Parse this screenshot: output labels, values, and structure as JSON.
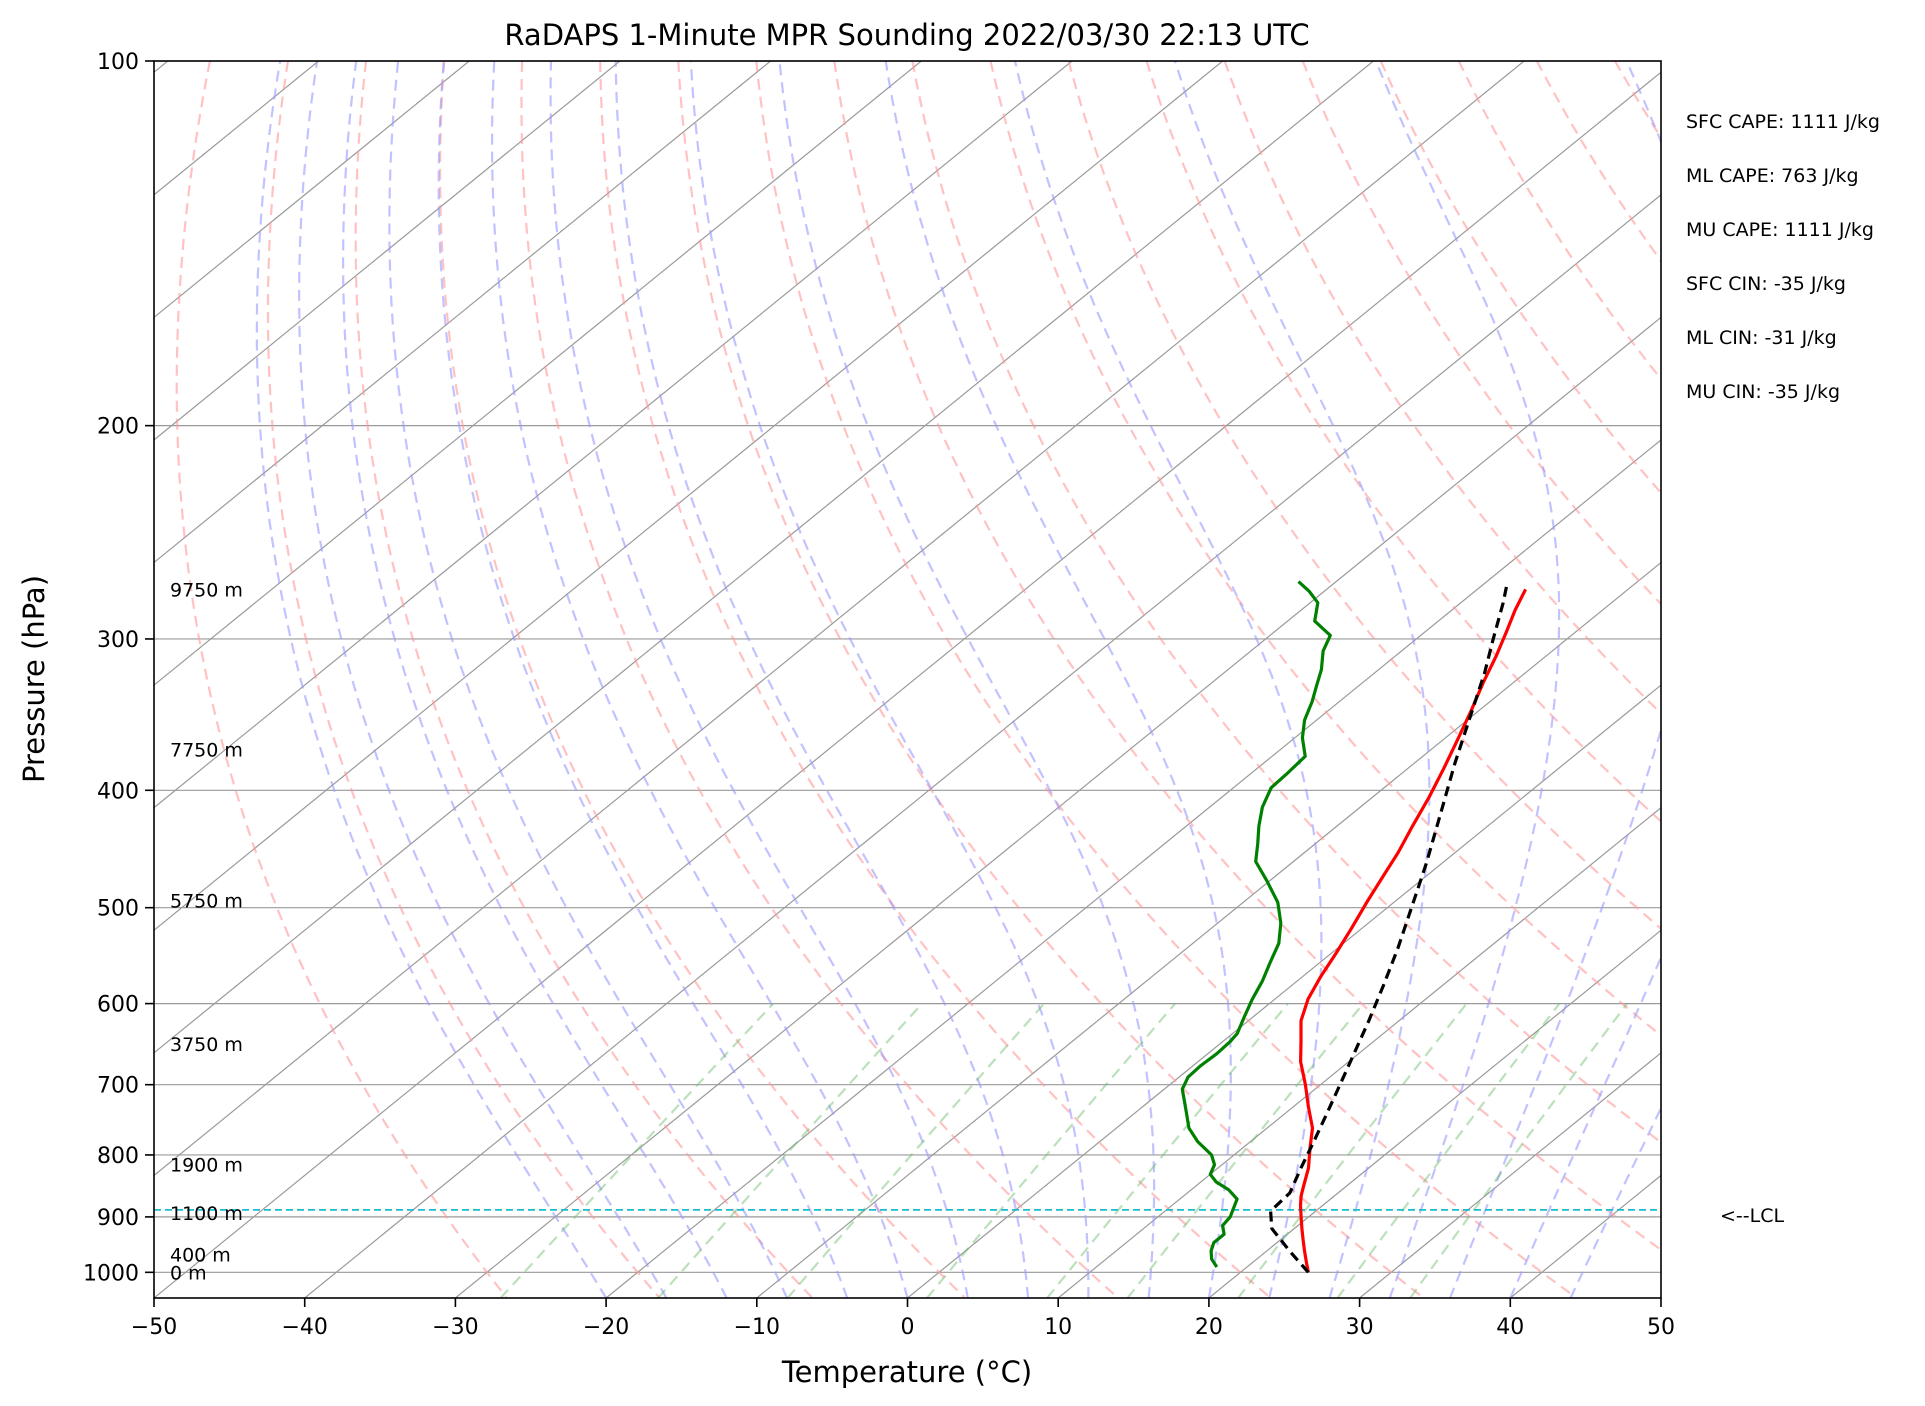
{
  "chart_data": {
    "type": "line",
    "title": "RaDAPS 1-Minute MPR Sounding 2022/03/30 22:13 UTC",
    "xlabel": "Temperature (°C)",
    "ylabel": "Pressure (hPa)",
    "xlim": [
      -50,
      50
    ],
    "ylim": [
      1050,
      100
    ],
    "y_scale": "log",
    "skew": true,
    "x_ticks": [
      "−50",
      "−40",
      "−30",
      "−20",
      "−10",
      "0",
      "10",
      "20",
      "30",
      "40",
      "50"
    ],
    "y_ticks": [
      "100",
      "200",
      "300",
      "400",
      "500",
      "600",
      "700",
      "800",
      "900",
      "1000"
    ],
    "height_labels": [
      {
        "text": "9750 m",
        "pressure": 273
      },
      {
        "text": "7750 m",
        "pressure": 370
      },
      {
        "text": "5750 m",
        "pressure": 493
      },
      {
        "text": "3750 m",
        "pressure": 648
      },
      {
        "text": "1900 m",
        "pressure": 815
      },
      {
        "text": "1100 m",
        "pressure": 893
      },
      {
        "text": "400 m",
        "pressure": 967
      },
      {
        "text": "0 m",
        "pressure": 1000
      }
    ],
    "parameters": [
      "SFC CAPE: 1111 J/kg",
      "ML CAPE: 763 J/kg",
      "MU CAPE: 1111 J/kg",
      "SFC CIN: -35 J/kg",
      "ML CIN: -31 J/kg",
      "MU CIN: -35 J/kg"
    ],
    "lcl": {
      "pressure": 888,
      "label": "<--LCL"
    },
    "series": [
      {
        "key": "temperature",
        "color": "#ff0000",
        "points": [
          [
            24.5,
            1000
          ],
          [
            23.5,
            980
          ],
          [
            22.5,
            960
          ],
          [
            21.5,
            940
          ],
          [
            20.5,
            920
          ],
          [
            19.5,
            900
          ],
          [
            18.5,
            880
          ],
          [
            17.8,
            865
          ],
          [
            17.2,
            850
          ],
          [
            16.0,
            820
          ],
          [
            14.5,
            790
          ],
          [
            13.0,
            760
          ],
          [
            11.0,
            730
          ],
          [
            9.0,
            700
          ],
          [
            6.8,
            670
          ],
          [
            5.2,
            645
          ],
          [
            3.5,
            620
          ],
          [
            2.2,
            595
          ],
          [
            1.2,
            570
          ],
          [
            0.3,
            545
          ],
          [
            -0.7,
            520
          ],
          [
            -1.8,
            495
          ],
          [
            -2.8,
            472
          ],
          [
            -3.8,
            450
          ],
          [
            -5.0,
            428
          ],
          [
            -6.2,
            406
          ],
          [
            -7.6,
            384
          ],
          [
            -9.0,
            364
          ],
          [
            -10.5,
            344
          ],
          [
            -12.0,
            326
          ],
          [
            -13.3,
            310
          ],
          [
            -14.6,
            296
          ],
          [
            -15.8,
            284
          ],
          [
            -16.8,
            273
          ]
        ]
      },
      {
        "key": "dewpoint",
        "color": "#008000",
        "points": [
          [
            18.0,
            990
          ],
          [
            17.0,
            975
          ],
          [
            16.3,
            960
          ],
          [
            15.8,
            945
          ],
          [
            15.8,
            930
          ],
          [
            15.0,
            915
          ],
          [
            14.8,
            900
          ],
          [
            14.3,
            885
          ],
          [
            13.8,
            870
          ],
          [
            12.5,
            855
          ],
          [
            11.0,
            842
          ],
          [
            10.0,
            830
          ],
          [
            9.5,
            815
          ],
          [
            8.5,
            800
          ],
          [
            6.5,
            780
          ],
          [
            4.8,
            760
          ],
          [
            3.5,
            740
          ],
          [
            2.3,
            722
          ],
          [
            1.2,
            706
          ],
          [
            0.6,
            690
          ],
          [
            0.5,
            675
          ],
          [
            0.6,
            660
          ],
          [
            0.5,
            645
          ],
          [
            0.3,
            635
          ],
          [
            -0.6,
            615
          ],
          [
            -1.5,
            595
          ],
          [
            -2.3,
            575
          ],
          [
            -3.3,
            555
          ],
          [
            -4.3,
            535
          ],
          [
            -5.8,
            515
          ],
          [
            -7.7,
            495
          ],
          [
            -10.2,
            475
          ],
          [
            -12.5,
            458
          ],
          [
            -13.8,
            443
          ],
          [
            -15.2,
            428
          ],
          [
            -16.5,
            413
          ],
          [
            -17.5,
            398
          ],
          [
            -17.6,
            387
          ],
          [
            -17.8,
            375
          ],
          [
            -19.5,
            362
          ],
          [
            -20.8,
            350
          ],
          [
            -21.8,
            338
          ],
          [
            -22.8,
            328
          ],
          [
            -23.8,
            318
          ],
          [
            -25.2,
            307
          ],
          [
            -26.0,
            298
          ],
          [
            -28.2,
            290
          ],
          [
            -29.5,
            280
          ],
          [
            -31.0,
            274
          ],
          [
            -32.5,
            269
          ]
        ]
      },
      {
        "key": "parcel",
        "color": "#000000",
        "dashed": true,
        "points": [
          [
            24.5,
            1000
          ],
          [
            21.5,
            960
          ],
          [
            18.5,
            920
          ],
          [
            17.0,
            890
          ],
          [
            16.8,
            860
          ],
          [
            15.5,
            820
          ],
          [
            14.2,
            780
          ],
          [
            12.8,
            740
          ],
          [
            11.3,
            700
          ],
          [
            9.7,
            660
          ],
          [
            8.0,
            620
          ],
          [
            6.1,
            580
          ],
          [
            4.0,
            540
          ],
          [
            1.6,
            500
          ],
          [
            -1.0,
            460
          ],
          [
            -4.0,
            420
          ],
          [
            -7.3,
            380
          ],
          [
            -10.8,
            340
          ],
          [
            -12.7,
            320
          ],
          [
            -14.9,
            300
          ],
          [
            -17.2,
            280
          ],
          [
            -18.5,
            270
          ]
        ]
      }
    ]
  }
}
